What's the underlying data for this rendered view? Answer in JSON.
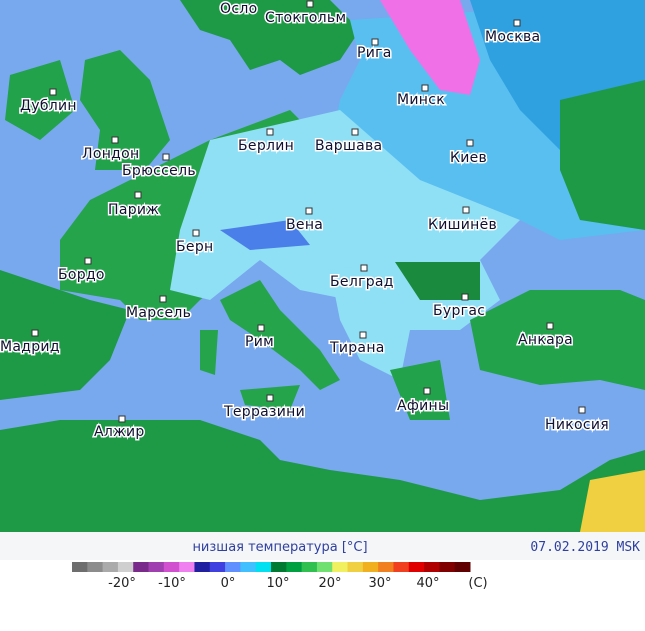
{
  "map": {
    "cities": [
      "Осло",
      "Стокгольм",
      "Рига",
      "Москва",
      "Дублин",
      "Минск",
      "Лондон",
      "Брюссель",
      "Берлин",
      "Варшава",
      "Киев",
      "Париж",
      "Вена",
      "Кишинёв",
      "Берн",
      "Бордо",
      "Белград",
      "Марсель",
      "Бургас",
      "Анкара",
      "Мадрид",
      "Рим",
      "Тирана",
      "Афины",
      "Терразини",
      "Алжир",
      "Никосия"
    ],
    "caption": "низшая температура [°C]",
    "date": "07.02.2019 MSK",
    "legend": {
      "colors": [
        "#6e6e6e",
        "#8c8c8c",
        "#aaaaaa",
        "#cfcfcf",
        "#7a2a8a",
        "#a040b0",
        "#d050d0",
        "#f080f0",
        "#2020a0",
        "#4040e0",
        "#6090ff",
        "#40c0ff",
        "#00e0f0",
        "#007a30",
        "#00a040",
        "#30c050",
        "#70e070",
        "#f0f060",
        "#f0d040",
        "#f0b020",
        "#f08020",
        "#f04020",
        "#e00000",
        "#b00000",
        "#800000",
        "#600000"
      ],
      "labels": [
        "-20°",
        "-10°",
        "0°",
        "10°",
        "20°",
        "30°",
        "40°",
        "(C)"
      ]
    }
  }
}
